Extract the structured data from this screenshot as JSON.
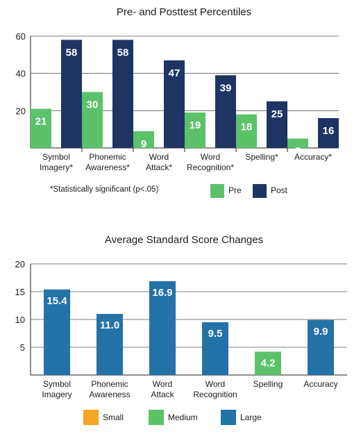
{
  "chart_data": [
    {
      "type": "bar",
      "title": "Pre- and Posttest Percentiles",
      "categories": [
        [
          "Symbol",
          "Imagery*"
        ],
        [
          "Phonemic",
          "Awareness*"
        ],
        [
          "Word",
          "Attack*"
        ],
        [
          "Word",
          "Recognition*"
        ],
        [
          "Spelling*"
        ],
        [
          "Accuracy*"
        ]
      ],
      "series": [
        {
          "name": "Pre",
          "values": [
            21,
            30,
            9,
            19,
            18,
            5
          ],
          "color": "#5cc26a"
        },
        {
          "name": "Post",
          "values": [
            58,
            58,
            47,
            39,
            25,
            16
          ],
          "color": "#1e3564"
        }
      ],
      "ylim": [
        0,
        60
      ],
      "yticks": [
        20,
        40,
        60
      ],
      "note": "*Statistically significant (p<.05)",
      "legend_position": "bottom-right",
      "grid": true,
      "label_color": "#ffffff"
    },
    {
      "type": "bar",
      "title": "Average Standard Score Changes",
      "categories": [
        [
          "Symbol",
          "Imagery"
        ],
        [
          "Phonemic",
          "Awareness"
        ],
        [
          "Word",
          "Attack"
        ],
        [
          "Word",
          "Recognition"
        ],
        [
          "Spelling"
        ],
        [
          "Accuracy"
        ]
      ],
      "values": [
        15.4,
        11.0,
        16.9,
        9.5,
        4.2,
        9.9
      ],
      "value_labels": [
        "15.4",
        "11.0",
        "16.9",
        "9.5",
        "4.2",
        "9.9"
      ],
      "bar_classes": [
        "Large",
        "Large",
        "Large",
        "Large",
        "Medium",
        "Large"
      ],
      "ylim": [
        0,
        20
      ],
      "yticks": [
        5,
        10,
        15,
        20
      ],
      "legend": [
        {
          "name": "Small",
          "color": "#f5a623"
        },
        {
          "name": "Medium",
          "color": "#5cc26a"
        },
        {
          "name": "Large",
          "color": "#2372a8"
        }
      ],
      "legend_position": "bottom-center",
      "grid": true,
      "label_color": "#ffffff"
    }
  ]
}
